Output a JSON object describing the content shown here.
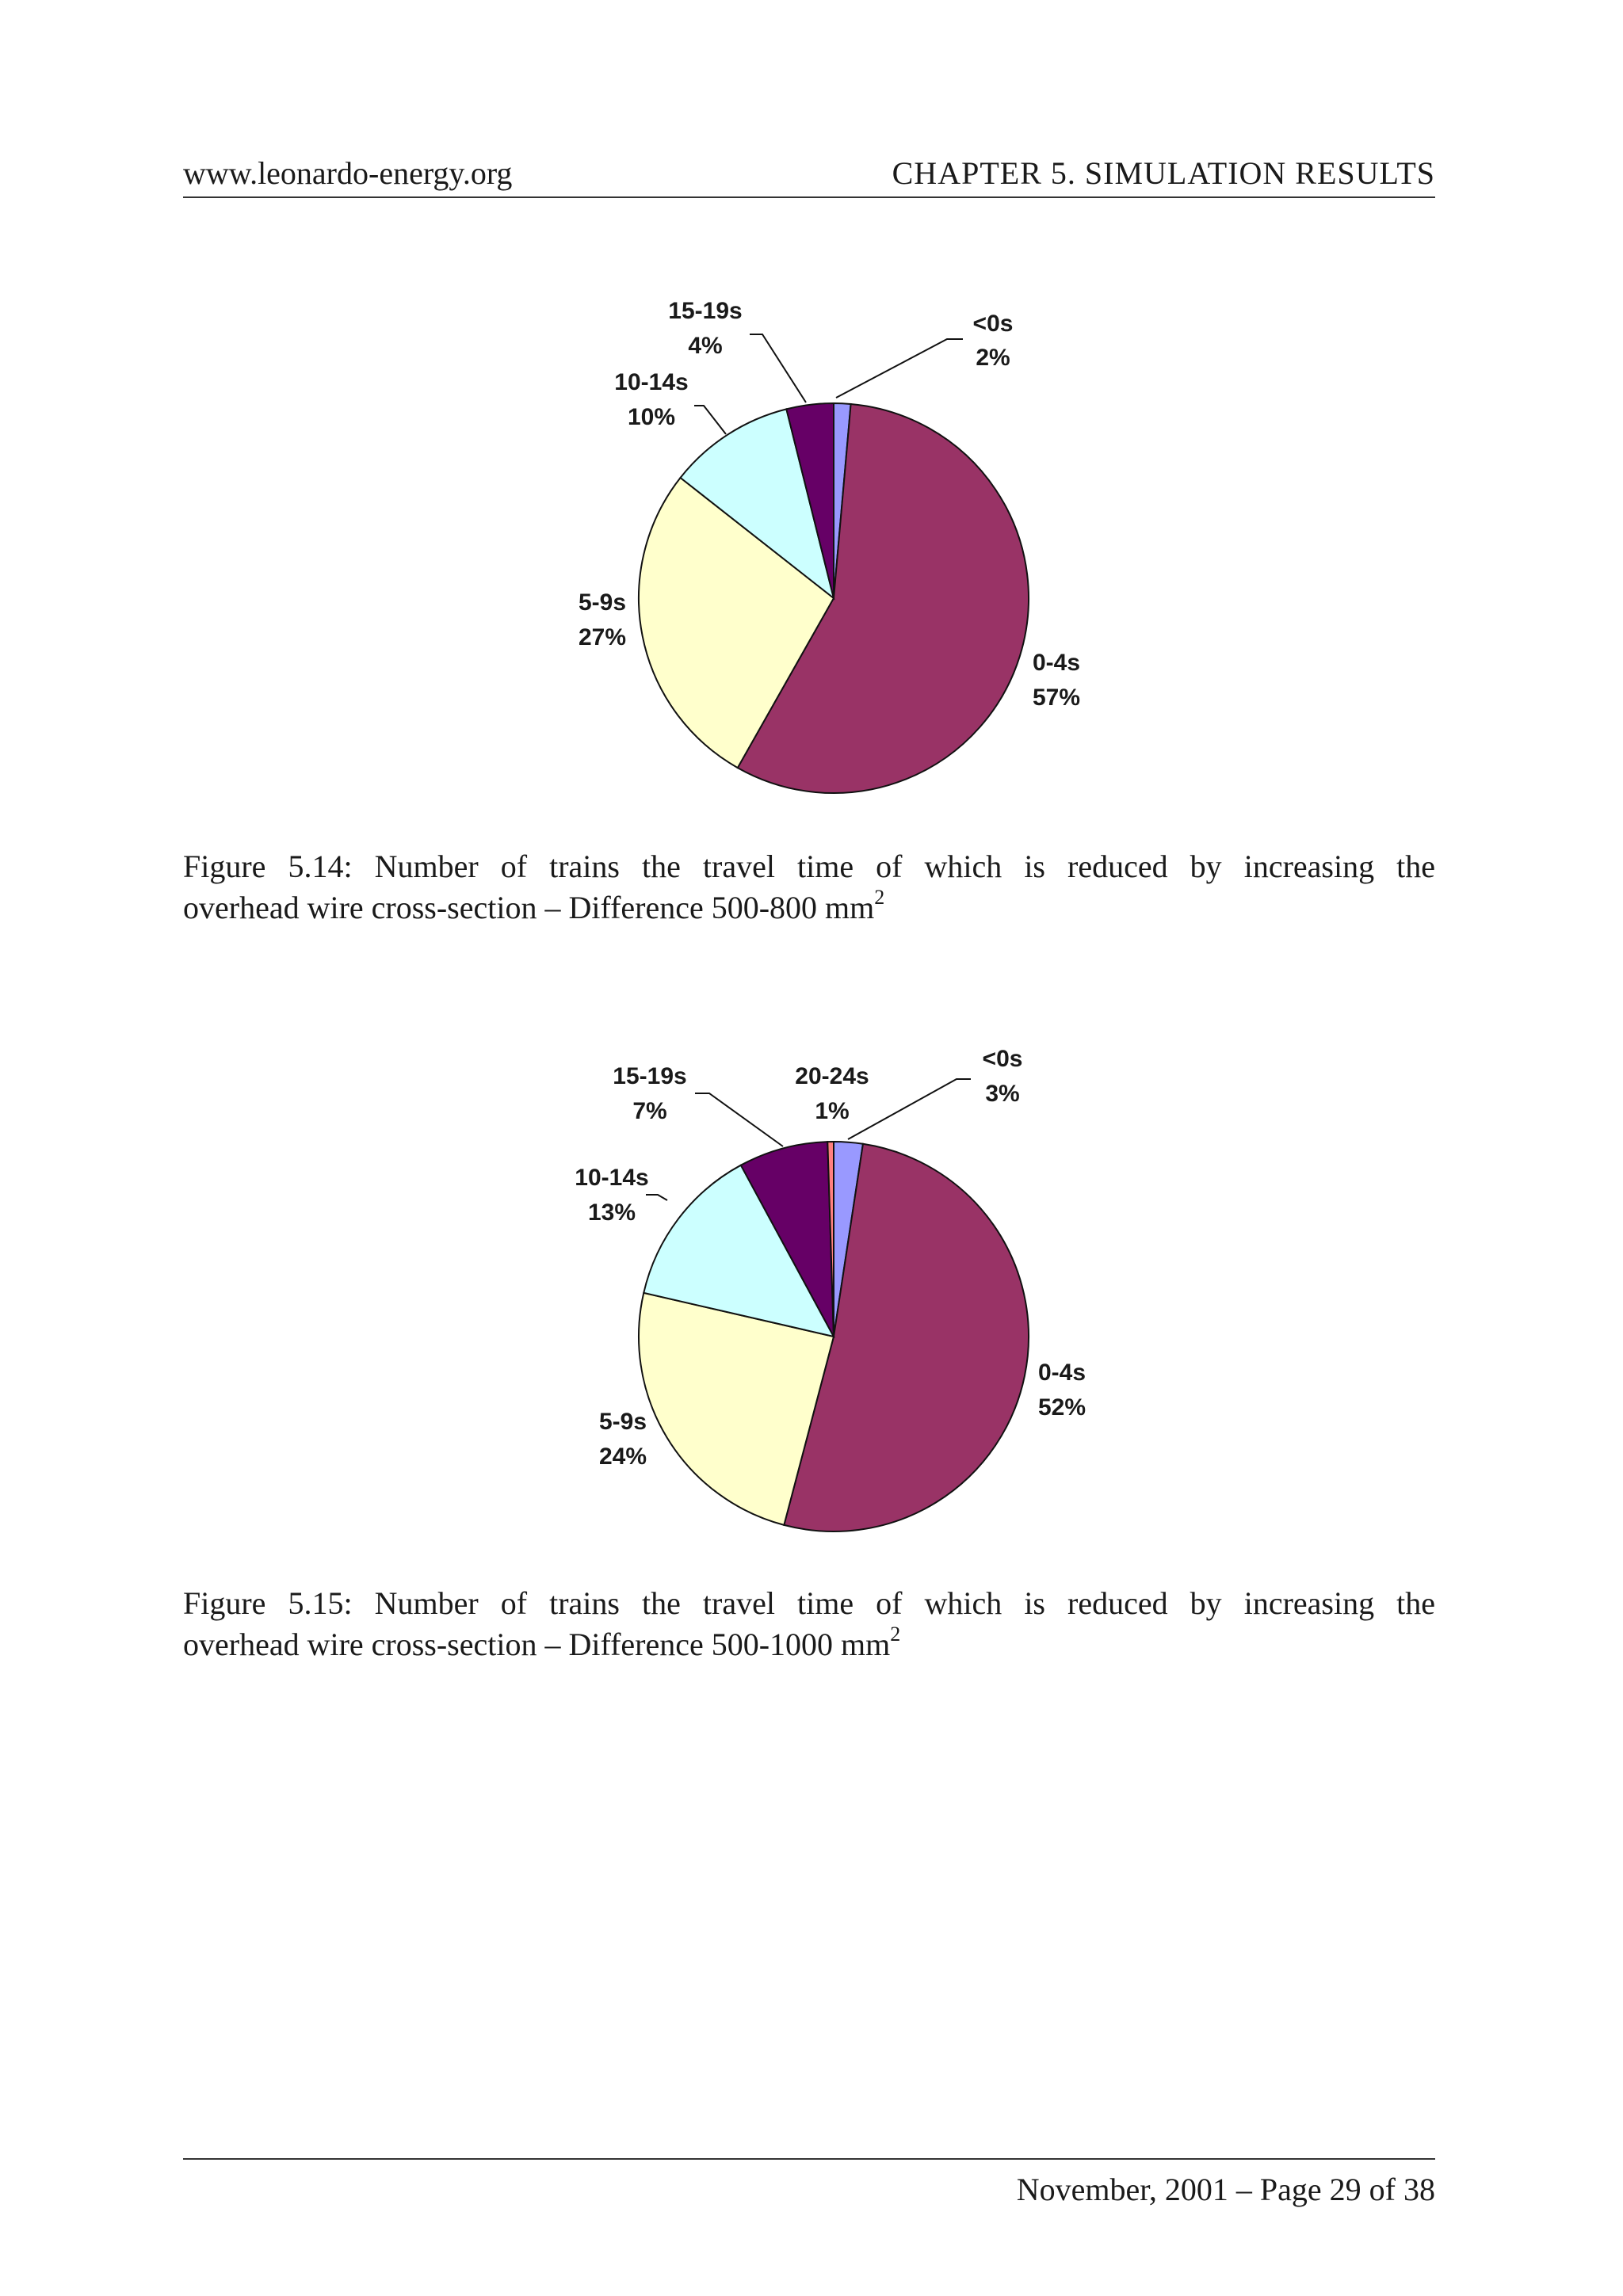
{
  "header": {
    "left": "www.leonardo-energy.org",
    "right": "CHAPTER 5.  SIMULATION RESULTS"
  },
  "figures": [
    {
      "caption_line1": "Figure 5.14:  Number of trains the travel time of which is reduced by increasing the",
      "caption_line2": "overhead wire cross-section – Difference 500-800 mm",
      "caption_sup": "2"
    },
    {
      "caption_line1": "Figure 5.15:  Number of trains the travel time of which is reduced by increasing the",
      "caption_line2": "overhead wire cross-section – Difference 500-1000 mm",
      "caption_sup": "2"
    }
  ],
  "chart_data": [
    {
      "type": "pie",
      "slices": [
        {
          "label": "<0s",
          "pct_label": "2%",
          "value": 1.4,
          "color": "#9999ff"
        },
        {
          "label": "0-4s",
          "pct_label": "57%",
          "value": 56.8,
          "color": "#993366"
        },
        {
          "label": "5-9s",
          "pct_label": "27%",
          "value": 27.4,
          "color": "#ffffcc"
        },
        {
          "label": "10-14s",
          "pct_label": "10%",
          "value": 10.5,
          "color": "#ccffff"
        },
        {
          "label": "15-19s",
          "pct_label": "4%",
          "value": 3.9,
          "color": "#660066"
        }
      ]
    },
    {
      "type": "pie",
      "slices": [
        {
          "label": "<0s",
          "pct_label": "3%",
          "value": 2.4,
          "color": "#9999ff"
        },
        {
          "label": "0-4s",
          "pct_label": "52%",
          "value": 51.7,
          "color": "#993366"
        },
        {
          "label": "5-9s",
          "pct_label": "24%",
          "value": 24.5,
          "color": "#ffffcc"
        },
        {
          "label": "10-14s",
          "pct_label": "13%",
          "value": 13.5,
          "color": "#ccffff"
        },
        {
          "label": "15-19s",
          "pct_label": "7%",
          "value": 7.4,
          "color": "#660066"
        },
        {
          "label": "20-24s",
          "pct_label": "1%",
          "value": 0.5,
          "color": "#ff8080"
        }
      ]
    }
  ],
  "footer": "November, 2001 – Page 29 of 38"
}
